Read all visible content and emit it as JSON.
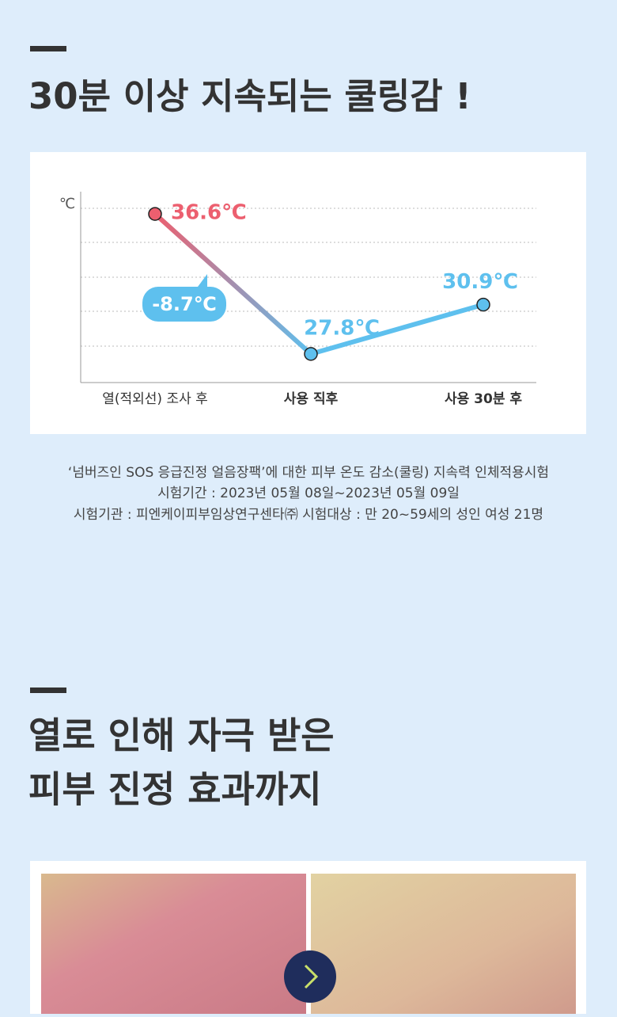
{
  "section1": {
    "title": "30분 이상 지속되는 쿨링감 !"
  },
  "chart_data": {
    "type": "line",
    "y_label": "℃",
    "categories": [
      "열(적외선) 조사 후",
      "사용 직후",
      "사용 30분 후"
    ],
    "values": [
      36.6,
      27.8,
      30.9
    ],
    "value_labels": [
      "36.6℃",
      "27.8℃",
      "30.9℃"
    ],
    "point_colors": [
      "#ec5f6f",
      "#5ec0ee",
      "#5ec0ee"
    ],
    "ylim": [
      26,
      38
    ],
    "grid": true,
    "annotation": "-8.7℃"
  },
  "footnotes": [
    "‘넘버즈인 SOS 응급진정 얼음장팩’에 대한 피부 온도 감소(쿨링) 지속력 인체적용시험",
    "시험기간 : 2023년 05월 08일~2023년 05월 09일",
    "시험기관 : 피엔케이피부임상연구센타㈜  시험대상 : 만 20~59세의 성인 여성 21명"
  ],
  "section2": {
    "title_lines": [
      "열로 인해 자극 받은",
      "피부 진정 효과까지"
    ]
  }
}
